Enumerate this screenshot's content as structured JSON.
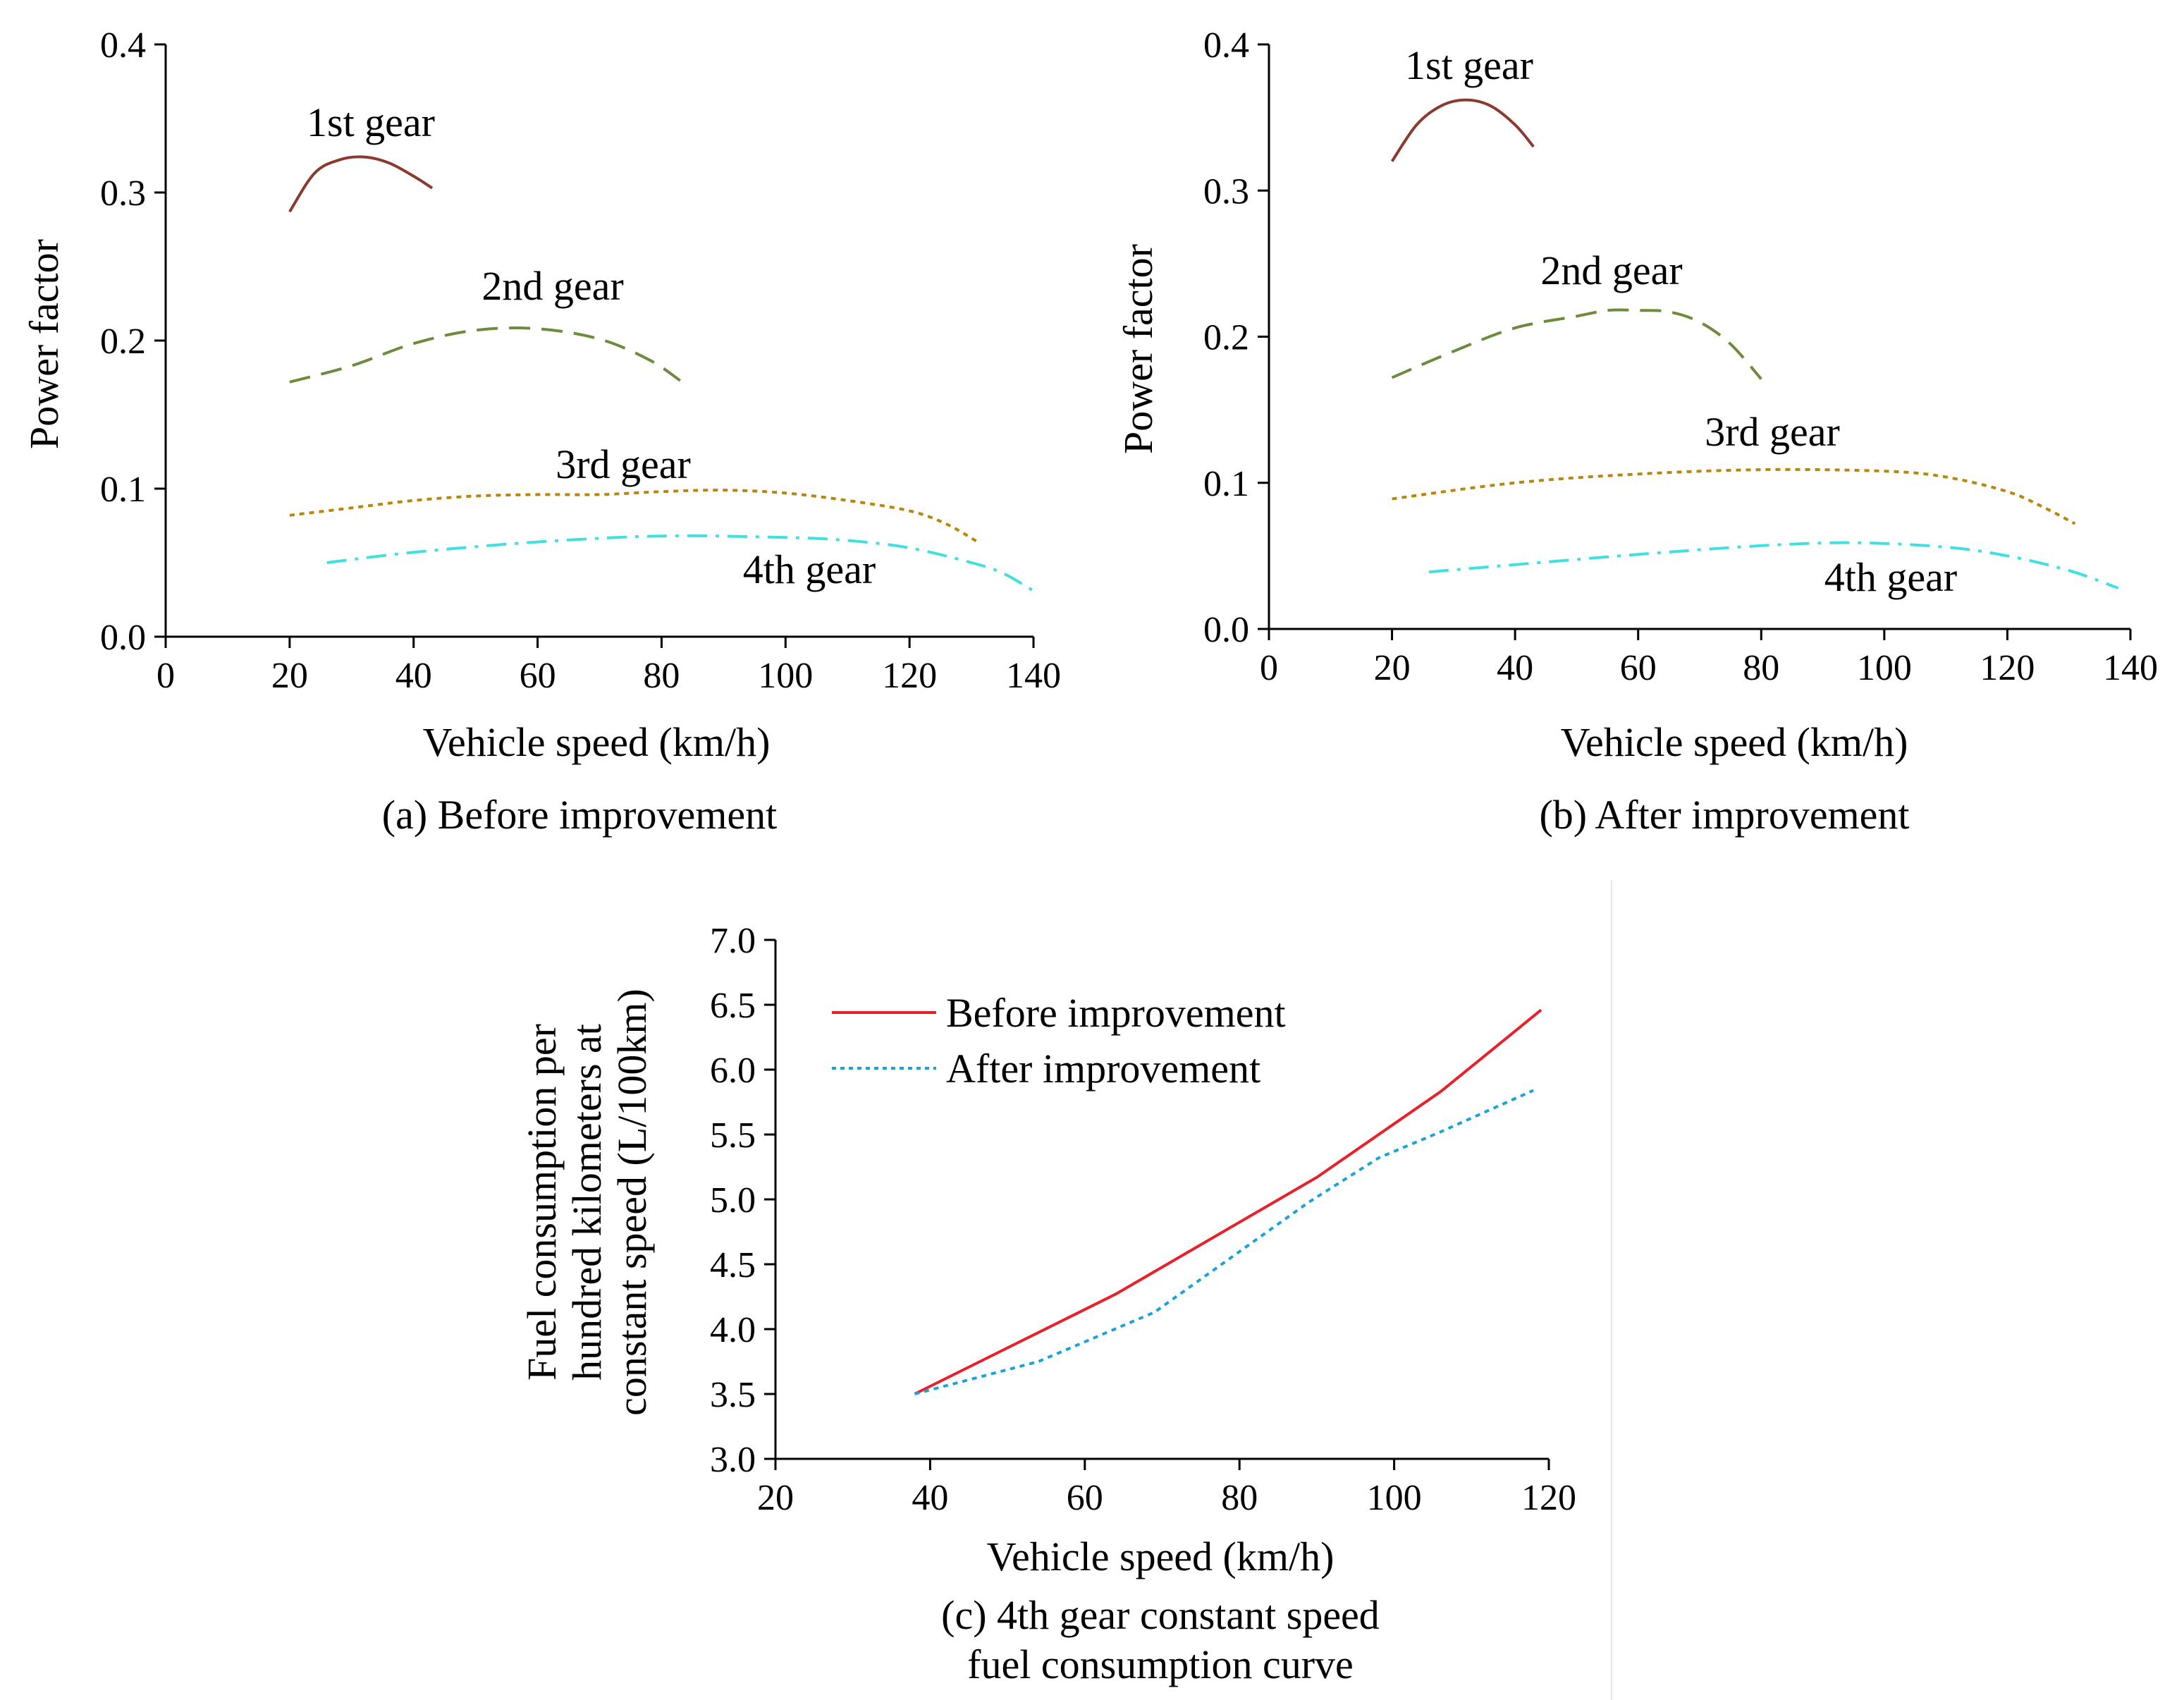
{
  "chart_data": [
    {
      "id": "a",
      "type": "line",
      "caption": "(a) Before improvement",
      "xlabel": "Vehicle speed (km/h)",
      "ylabel": "Power factor",
      "xlim": [
        0,
        140
      ],
      "ylim": [
        0.0,
        0.4
      ],
      "xticks": [
        0,
        20,
        40,
        60,
        80,
        100,
        120,
        140
      ],
      "yticks": [
        0.0,
        0.1,
        0.2,
        0.3,
        0.4
      ],
      "ytick_labels": [
        "0.0",
        "0.1",
        "0.2",
        "0.3",
        "0.4"
      ],
      "series": [
        {
          "name": "1st gear",
          "label": "1st gear",
          "color": "#8B3A2F",
          "dash": "solid",
          "x": [
            20,
            24,
            28,
            32,
            36,
            40,
            43
          ],
          "y": [
            0.287,
            0.313,
            0.322,
            0.324,
            0.32,
            0.311,
            0.303
          ]
        },
        {
          "name": "2nd gear",
          "label": "2nd gear",
          "color": "#6E8B3D",
          "dash": "dash",
          "x": [
            20,
            30,
            40,
            50,
            60,
            70,
            78,
            83
          ],
          "y": [
            0.172,
            0.183,
            0.198,
            0.207,
            0.208,
            0.201,
            0.187,
            0.173
          ]
        },
        {
          "name": "3rd gear",
          "label": "3rd gear",
          "color": "#B8860B",
          "dash": "dot",
          "x": [
            20,
            30,
            40,
            50,
            60,
            70,
            80,
            90,
            100,
            110,
            120,
            126,
            131
          ],
          "y": [
            0.082,
            0.087,
            0.092,
            0.095,
            0.096,
            0.096,
            0.098,
            0.099,
            0.097,
            0.092,
            0.085,
            0.076,
            0.064
          ]
        },
        {
          "name": "4th gear",
          "label": "4th gear",
          "color": "#40E0E0",
          "dash": "dashdot",
          "x": [
            26,
            40,
            60,
            80,
            100,
            110,
            120,
            130,
            135,
            140
          ],
          "y": [
            0.05,
            0.057,
            0.064,
            0.068,
            0.067,
            0.065,
            0.06,
            0.05,
            0.043,
            0.031
          ]
        }
      ]
    },
    {
      "id": "b",
      "type": "line",
      "caption": "(b) After improvement",
      "xlabel": "Vehicle speed (km/h)",
      "ylabel": "Power factor",
      "xlim": [
        0,
        140
      ],
      "ylim": [
        0.0,
        0.4
      ],
      "xticks": [
        0,
        20,
        40,
        60,
        80,
        100,
        120,
        140
      ],
      "yticks": [
        0.0,
        0.1,
        0.2,
        0.3,
        0.4
      ],
      "ytick_labels": [
        "0.0",
        "0.1",
        "0.2",
        "0.3",
        "0.4"
      ],
      "series": [
        {
          "name": "1st gear",
          "label": "1st gear",
          "color": "#8B3A2F",
          "dash": "solid",
          "x": [
            20,
            24,
            28,
            32,
            36,
            40,
            43
          ],
          "y": [
            0.32,
            0.345,
            0.358,
            0.362,
            0.358,
            0.345,
            0.33
          ]
        },
        {
          "name": "2nd gear",
          "label": "2nd gear",
          "color": "#6E8B3D",
          "dash": "dash",
          "x": [
            20,
            30,
            40,
            50,
            55,
            60,
            65,
            70,
            75,
            80
          ],
          "y": [
            0.172,
            0.19,
            0.206,
            0.214,
            0.218,
            0.218,
            0.217,
            0.21,
            0.195,
            0.171
          ]
        },
        {
          "name": "3rd gear",
          "label": "3rd gear",
          "color": "#B8860B",
          "dash": "dot",
          "x": [
            20,
            40,
            60,
            80,
            100,
            110,
            120,
            126,
            131
          ],
          "y": [
            0.089,
            0.1,
            0.106,
            0.109,
            0.108,
            0.104,
            0.094,
            0.083,
            0.072
          ]
        },
        {
          "name": "4th gear",
          "label": "4th gear",
          "color": "#40E0E0",
          "dash": "dashdot",
          "x": [
            26,
            40,
            60,
            80,
            95,
            110,
            120,
            130,
            138
          ],
          "y": [
            0.039,
            0.044,
            0.051,
            0.057,
            0.059,
            0.056,
            0.05,
            0.04,
            0.028
          ]
        }
      ]
    },
    {
      "id": "c",
      "type": "line",
      "caption_line1": "(c)  4th gear constant speed",
      "caption_line2": "fuel consumption curve",
      "xlabel": "Vehicle speed (km/h)",
      "ylabel_lines": [
        "Fuel consumption per",
        "hundred kilometers at",
        "constant speed (L/100km)"
      ],
      "xlim": [
        20,
        120
      ],
      "ylim": [
        3.0,
        7.0
      ],
      "xticks": [
        20,
        40,
        60,
        80,
        100,
        120
      ],
      "yticks": [
        3.0,
        3.5,
        4.0,
        4.5,
        5.0,
        5.5,
        6.0,
        6.5,
        7.0
      ],
      "ytick_labels": [
        "3.0",
        "3.5",
        "4.0",
        "4.5",
        "5.0",
        "5.5",
        "6.0",
        "6.5",
        "7.0"
      ],
      "legend_position": "top-left",
      "series": [
        {
          "name": "Before improvement",
          "color": "#E8202A",
          "dash": "solid",
          "x": [
            38,
            64,
            90,
            106,
            119
          ],
          "y": [
            3.5,
            4.27,
            5.17,
            5.83,
            6.46
          ]
        },
        {
          "name": "After improvement",
          "color": "#1AA3D8",
          "dash": "dot",
          "x": [
            38,
            54,
            69,
            89,
            98,
            106,
            118
          ],
          "y": [
            3.5,
            3.75,
            4.13,
            4.98,
            5.32,
            5.52,
            5.84
          ]
        }
      ]
    }
  ]
}
